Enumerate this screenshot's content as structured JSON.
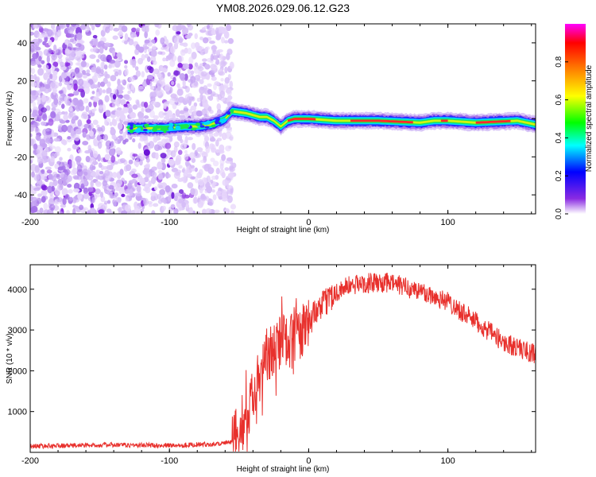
{
  "title": "YM08.2026.029.06.12.G23",
  "chart_data": [
    {
      "type": "heatmap",
      "name": "spectrogram",
      "xlabel": "Height of straight line (km)",
      "ylabel": "Frequency (Hz)",
      "xlim": [
        -200,
        163
      ],
      "ylim": [
        -50,
        50
      ],
      "xticks": [
        -200,
        -100,
        0,
        100
      ],
      "yticks": [
        -40,
        -20,
        0,
        20,
        40
      ],
      "noise_region_x": [
        -200,
        -55
      ],
      "signal_trace": [
        {
          "x": -130,
          "f": -5
        },
        {
          "x": -120,
          "f": -5
        },
        {
          "x": -105,
          "f": -5
        },
        {
          "x": -90,
          "f": -4
        },
        {
          "x": -80,
          "f": -4
        },
        {
          "x": -70,
          "f": -3
        },
        {
          "x": -60,
          "f": 0
        },
        {
          "x": -55,
          "f": 4
        },
        {
          "x": -45,
          "f": 3
        },
        {
          "x": -35,
          "f": 1
        },
        {
          "x": -30,
          "f": 1
        },
        {
          "x": -25,
          "f": -1
        },
        {
          "x": -20,
          "f": -4
        },
        {
          "x": -15,
          "f": -1
        },
        {
          "x": -10,
          "f": 0
        },
        {
          "x": 0,
          "f": 0
        },
        {
          "x": 20,
          "f": -1
        },
        {
          "x": 50,
          "f": -1
        },
        {
          "x": 80,
          "f": -2
        },
        {
          "x": 90,
          "f": -1
        },
        {
          "x": 100,
          "f": -1
        },
        {
          "x": 120,
          "f": -2
        },
        {
          "x": 150,
          "f": -1
        },
        {
          "x": 163,
          "f": -3
        }
      ],
      "colorbar": {
        "label": "Normalized spectral amplitude",
        "range": [
          0,
          1
        ],
        "ticks": [
          "0.0",
          "0.2",
          "0.4",
          "0.6",
          "0.8"
        ],
        "tick_values": [
          0,
          0.2,
          0.4,
          0.6,
          0.8
        ],
        "colors": [
          "#ffffff",
          "#8a2be2",
          "#0000ff",
          "#00ffff",
          "#00ff00",
          "#ffff00",
          "#ff8000",
          "#ff0000",
          "#ff00ff"
        ]
      }
    },
    {
      "type": "line",
      "name": "snr",
      "xlabel": "Height of straight line (km)",
      "ylabel": "SNR (10 * v/v)",
      "xlim": [
        -200,
        163
      ],
      "ylim": [
        0,
        4600
      ],
      "xticks": [
        -200,
        -100,
        0,
        100
      ],
      "yticks": [
        1000,
        2000,
        3000,
        4000
      ],
      "color": "#e8302c",
      "envelope": [
        {
          "x": -200,
          "y": 150
        },
        {
          "x": -150,
          "y": 180
        },
        {
          "x": -100,
          "y": 170
        },
        {
          "x": -70,
          "y": 200
        },
        {
          "x": -55,
          "y": 250
        },
        {
          "x": -45,
          "y": 900
        },
        {
          "x": -35,
          "y": 2000
        },
        {
          "x": -25,
          "y": 2600
        },
        {
          "x": -15,
          "y": 2800
        },
        {
          "x": -5,
          "y": 3000
        },
        {
          "x": 5,
          "y": 3400
        },
        {
          "x": 15,
          "y": 3800
        },
        {
          "x": 25,
          "y": 4050
        },
        {
          "x": 40,
          "y": 4150
        },
        {
          "x": 60,
          "y": 4150
        },
        {
          "x": 80,
          "y": 3950
        },
        {
          "x": 100,
          "y": 3700
        },
        {
          "x": 120,
          "y": 3200
        },
        {
          "x": 140,
          "y": 2700
        },
        {
          "x": 163,
          "y": 2400
        }
      ]
    }
  ]
}
